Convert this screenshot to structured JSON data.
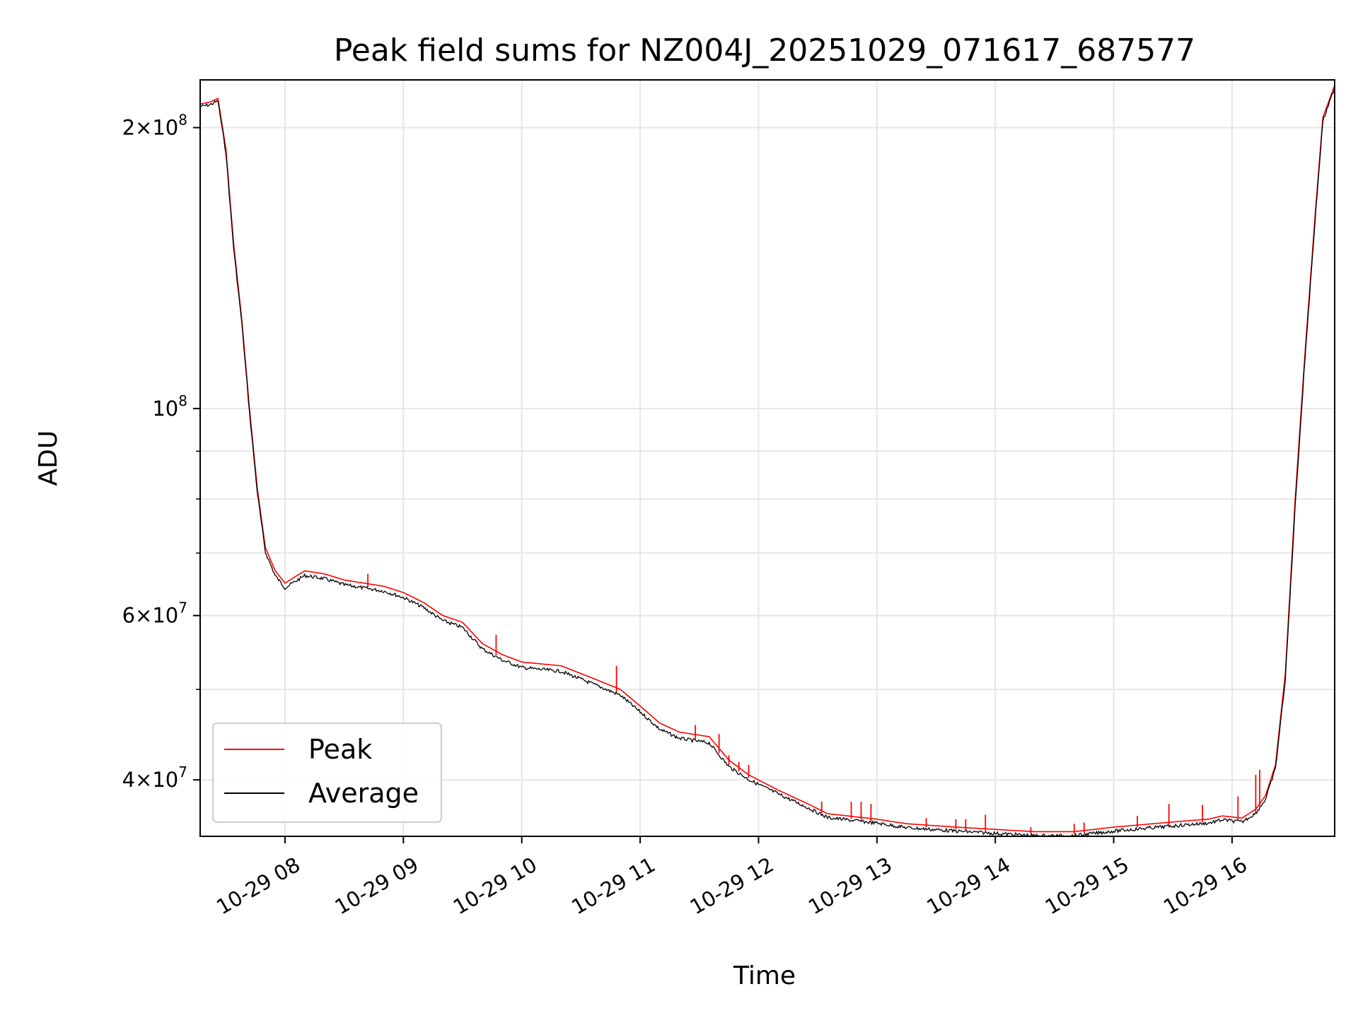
{
  "chart_data": {
    "type": "line",
    "title": "Peak field sums for NZ004J_20251029_071617_687577",
    "xlabel": "Time",
    "ylabel": "ADU",
    "yscale": "log",
    "xlim": [
      "2025-10-29 07:17",
      "2025-10-29 16:52"
    ],
    "ylim": [
      34800000,
      225000000
    ],
    "grid": true,
    "legend_position": "lower-left",
    "x_ticks": [
      {
        "value": "2025-10-29 08:00",
        "label": "10-29 08"
      },
      {
        "value": "2025-10-29 09:00",
        "label": "10-29 09"
      },
      {
        "value": "2025-10-29 10:00",
        "label": "10-29 10"
      },
      {
        "value": "2025-10-29 11:00",
        "label": "10-29 11"
      },
      {
        "value": "2025-10-29 12:00",
        "label": "10-29 12"
      },
      {
        "value": "2025-10-29 13:00",
        "label": "10-29 13"
      },
      {
        "value": "2025-10-29 14:00",
        "label": "10-29 14"
      },
      {
        "value": "2025-10-29 15:00",
        "label": "10-29 15"
      },
      {
        "value": "2025-10-29 16:00",
        "label": "10-29 16"
      }
    ],
    "y_ticks": [
      {
        "value": 40000000,
        "mantissa": "4",
        "exponent": "7"
      },
      {
        "value": 60000000,
        "mantissa": "6",
        "exponent": "7"
      },
      {
        "value": 100000000,
        "mantissa": "",
        "exponent": "8"
      },
      {
        "value": 200000000,
        "mantissa": "2",
        "exponent": "8"
      }
    ],
    "y_minor_ticks": [
      50000000,
      70000000,
      80000000,
      90000000
    ],
    "series": [
      {
        "name": "Peak",
        "color": "#ff0000",
        "x": [
          "2025-10-29 07:17",
          "2025-10-29 07:22",
          "2025-10-29 07:26",
          "2025-10-29 07:30",
          "2025-10-29 07:34",
          "2025-10-29 07:38",
          "2025-10-29 07:42",
          "2025-10-29 07:46",
          "2025-10-29 07:50",
          "2025-10-29 07:55",
          "2025-10-29 08:00",
          "2025-10-29 08:05",
          "2025-10-29 08:10",
          "2025-10-29 08:20",
          "2025-10-29 08:30",
          "2025-10-29 08:40",
          "2025-10-29 08:50",
          "2025-10-29 09:00",
          "2025-10-29 09:10",
          "2025-10-29 09:20",
          "2025-10-29 09:30",
          "2025-10-29 09:40",
          "2025-10-29 09:50",
          "2025-10-29 10:00",
          "2025-10-29 10:20",
          "2025-10-29 10:35",
          "2025-10-29 10:50",
          "2025-10-29 11:00",
          "2025-10-29 11:10",
          "2025-10-29 11:20",
          "2025-10-29 11:35",
          "2025-10-29 11:45",
          "2025-10-29 11:55",
          "2025-10-29 12:10",
          "2025-10-29 12:25",
          "2025-10-29 12:35",
          "2025-10-29 12:50",
          "2025-10-29 13:00",
          "2025-10-29 13:15",
          "2025-10-29 13:40",
          "2025-10-29 14:00",
          "2025-10-29 14:20",
          "2025-10-29 14:40",
          "2025-10-29 15:00",
          "2025-10-29 15:20",
          "2025-10-29 15:40",
          "2025-10-29 15:48",
          "2025-10-29 15:55",
          "2025-10-29 16:05",
          "2025-10-29 16:12",
          "2025-10-29 16:17",
          "2025-10-29 16:22",
          "2025-10-29 16:27",
          "2025-10-29 16:32",
          "2025-10-29 16:37",
          "2025-10-29 16:42",
          "2025-10-29 16:46",
          "2025-10-29 16:52"
        ],
        "values": [
          212000000,
          213000000,
          215000000,
          190000000,
          150000000,
          125000000,
          100000000,
          82000000,
          71000000,
          67000000,
          65000000,
          66000000,
          67000000,
          66500000,
          65500000,
          65000000,
          64500000,
          63500000,
          62000000,
          60000000,
          59000000,
          56000000,
          54500000,
          53500000,
          53000000,
          51500000,
          50000000,
          48000000,
          46000000,
          45000000,
          44500000,
          42000000,
          40500000,
          39000000,
          37700000,
          36800000,
          36500000,
          36300000,
          35900000,
          35600000,
          35400000,
          35200000,
          35200000,
          35600000,
          35900000,
          36200000,
          36300000,
          36600000,
          36400000,
          37200000,
          38500000,
          41500000,
          52000000,
          80000000,
          115000000,
          160000000,
          205000000,
          222000000
        ],
        "spikes": [
          {
            "x": "2025-10-29 08:42",
            "value": 66500000
          },
          {
            "x": "2025-10-29 09:47",
            "value": 57200000
          },
          {
            "x": "2025-10-29 10:48",
            "value": 53000000
          },
          {
            "x": "2025-10-29 11:28",
            "value": 45800000
          },
          {
            "x": "2025-10-29 11:40",
            "value": 44800000
          },
          {
            "x": "2025-10-29 11:45",
            "value": 42500000
          },
          {
            "x": "2025-10-29 11:50",
            "value": 41800000
          },
          {
            "x": "2025-10-29 11:55",
            "value": 41500000
          },
          {
            "x": "2025-10-29 12:32",
            "value": 37900000
          },
          {
            "x": "2025-10-29 12:47",
            "value": 37900000
          },
          {
            "x": "2025-10-29 12:52",
            "value": 37900000
          },
          {
            "x": "2025-10-29 12:57",
            "value": 37700000
          },
          {
            "x": "2025-10-29 13:25",
            "value": 36400000
          },
          {
            "x": "2025-10-29 13:40",
            "value": 36300000
          },
          {
            "x": "2025-10-29 13:45",
            "value": 36300000
          },
          {
            "x": "2025-10-29 13:55",
            "value": 36700000
          },
          {
            "x": "2025-10-29 14:18",
            "value": 35600000
          },
          {
            "x": "2025-10-29 14:40",
            "value": 35900000
          },
          {
            "x": "2025-10-29 14:45",
            "value": 36000000
          },
          {
            "x": "2025-10-29 15:12",
            "value": 36600000
          },
          {
            "x": "2025-10-29 15:28",
            "value": 37700000
          },
          {
            "x": "2025-10-29 15:45",
            "value": 37600000
          },
          {
            "x": "2025-10-29 16:03",
            "value": 38400000
          },
          {
            "x": "2025-10-29 16:12",
            "value": 40500000
          },
          {
            "x": "2025-10-29 16:14",
            "value": 41000000
          }
        ]
      },
      {
        "name": "Average",
        "color": "#000000",
        "x": [
          "2025-10-29 07:17",
          "2025-10-29 07:22",
          "2025-10-29 07:26",
          "2025-10-29 07:30",
          "2025-10-29 07:34",
          "2025-10-29 07:38",
          "2025-10-29 07:42",
          "2025-10-29 07:46",
          "2025-10-29 07:50",
          "2025-10-29 07:55",
          "2025-10-29 08:00",
          "2025-10-29 08:05",
          "2025-10-29 08:10",
          "2025-10-29 08:20",
          "2025-10-29 08:30",
          "2025-10-29 08:40",
          "2025-10-29 08:50",
          "2025-10-29 09:00",
          "2025-10-29 09:10",
          "2025-10-29 09:20",
          "2025-10-29 09:30",
          "2025-10-29 09:40",
          "2025-10-29 09:50",
          "2025-10-29 10:00",
          "2025-10-29 10:20",
          "2025-10-29 10:35",
          "2025-10-29 10:50",
          "2025-10-29 11:00",
          "2025-10-29 11:10",
          "2025-10-29 11:20",
          "2025-10-29 11:35",
          "2025-10-29 11:45",
          "2025-10-29 11:55",
          "2025-10-29 12:10",
          "2025-10-29 12:25",
          "2025-10-29 12:35",
          "2025-10-29 12:50",
          "2025-10-29 13:00",
          "2025-10-29 13:15",
          "2025-10-29 13:40",
          "2025-10-29 14:00",
          "2025-10-29 14:20",
          "2025-10-29 14:40",
          "2025-10-29 15:00",
          "2025-10-29 15:20",
          "2025-10-29 15:40",
          "2025-10-29 15:48",
          "2025-10-29 15:55",
          "2025-10-29 16:05",
          "2025-10-29 16:12",
          "2025-10-29 16:17",
          "2025-10-29 16:22",
          "2025-10-29 16:27",
          "2025-10-29 16:32",
          "2025-10-29 16:37",
          "2025-10-29 16:42",
          "2025-10-29 16:46",
          "2025-10-29 16:52"
        ],
        "values": [
          211500000,
          212500000,
          214500000,
          189000000,
          149000000,
          124500000,
          99500000,
          81500000,
          70500000,
          66500000,
          64500000,
          65500000,
          66500000,
          66000000,
          65000000,
          64500000,
          64000000,
          63000000,
          61500000,
          59500000,
          58500000,
          55500000,
          54000000,
          53000000,
          52500000,
          51000000,
          49500000,
          47500000,
          45500000,
          44500000,
          44000000,
          41500000,
          40200000,
          38800000,
          37500000,
          36600000,
          36300000,
          36100000,
          35700000,
          35400000,
          35200000,
          35000000,
          35000000,
          35400000,
          35700000,
          36000000,
          36100000,
          36400000,
          36200000,
          37000000,
          38300000,
          41300000,
          51500000,
          79000000,
          114000000,
          159000000,
          204000000,
          221500000
        ],
        "noise_amplitude_ratio": 0.006
      }
    ]
  }
}
